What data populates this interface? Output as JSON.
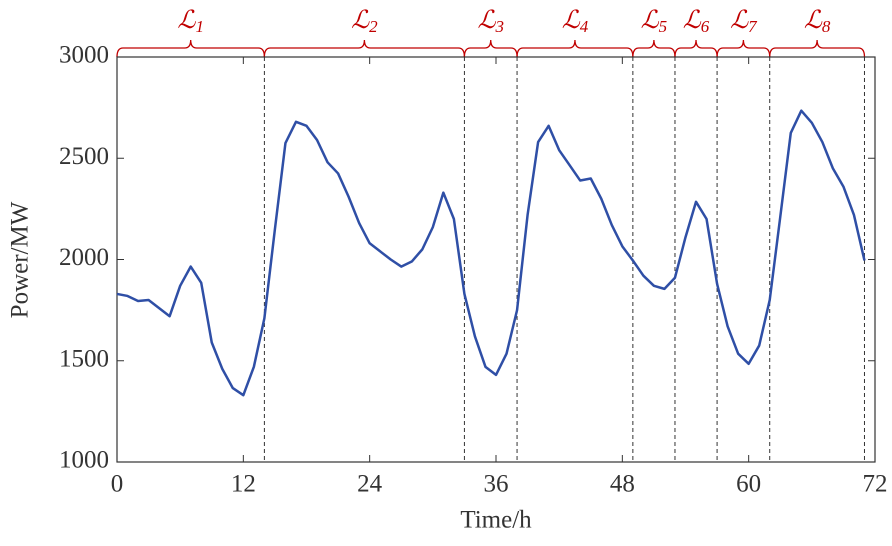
{
  "chart_data": {
    "type": "line",
    "x_label": "Time/h",
    "y_label": "Power/MW",
    "x": [
      0,
      1,
      2,
      3,
      4,
      5,
      6,
      7,
      8,
      9,
      10,
      11,
      12,
      13,
      14,
      15,
      16,
      17,
      18,
      19,
      20,
      21,
      22,
      23,
      24,
      25,
      26,
      27,
      28,
      29,
      30,
      31,
      32,
      33,
      34,
      35,
      36,
      37,
      38,
      39,
      40,
      41,
      42,
      43,
      44,
      45,
      46,
      47,
      48,
      49,
      50,
      51,
      52,
      53,
      54,
      55,
      56,
      57,
      58,
      59,
      60,
      61,
      62,
      63,
      64,
      65,
      66,
      67,
      68,
      69,
      70,
      71
    ],
    "series": [
      {
        "color": "#2f4fa6",
        "values": [
          1830,
          1820,
          1795,
          1800,
          1760,
          1720,
          1870,
          1965,
          1885,
          1590,
          1460,
          1365,
          1330,
          1470,
          1710,
          2150,
          2575,
          2680,
          2660,
          2590,
          2480,
          2425,
          2310,
          2180,
          2080,
          2040,
          2000,
          1965,
          1990,
          2050,
          2160,
          2330,
          2200,
          1830,
          1620,
          1470,
          1430,
          1535,
          1750,
          2220,
          2580,
          2660,
          2540,
          2465,
          2390,
          2400,
          2300,
          2170,
          2065,
          1995,
          1920,
          1870,
          1855,
          1910,
          2110,
          2285,
          2200,
          1880,
          1670,
          1535,
          1485,
          1575,
          1800,
          2210,
          2625,
          2735,
          2675,
          2580,
          2450,
          2360,
          2220,
          1995
        ]
      }
    ],
    "segments": [
      {
        "name": "ℒ",
        "sub": "1",
        "start": 0,
        "end": 14
      },
      {
        "name": "ℒ",
        "sub": "2",
        "start": 14,
        "end": 33
      },
      {
        "name": "ℒ",
        "sub": "3",
        "start": 33,
        "end": 38
      },
      {
        "name": "ℒ",
        "sub": "4",
        "start": 38,
        "end": 49
      },
      {
        "name": "ℒ",
        "sub": "5",
        "start": 49,
        "end": 53
      },
      {
        "name": "ℒ",
        "sub": "6",
        "start": 53,
        "end": 57
      },
      {
        "name": "ℒ",
        "sub": "7",
        "start": 57,
        "end": 62
      },
      {
        "name": "ℒ",
        "sub": "8",
        "start": 62,
        "end": 71
      }
    ],
    "segment_color": "#c00000",
    "xlim": [
      0,
      72
    ],
    "xticks": [
      0,
      12,
      24,
      36,
      48,
      60,
      72
    ],
    "ylim": [
      1000,
      3000
    ],
    "yticks": [
      1000,
      1500,
      2000,
      2500,
      3000
    ]
  }
}
